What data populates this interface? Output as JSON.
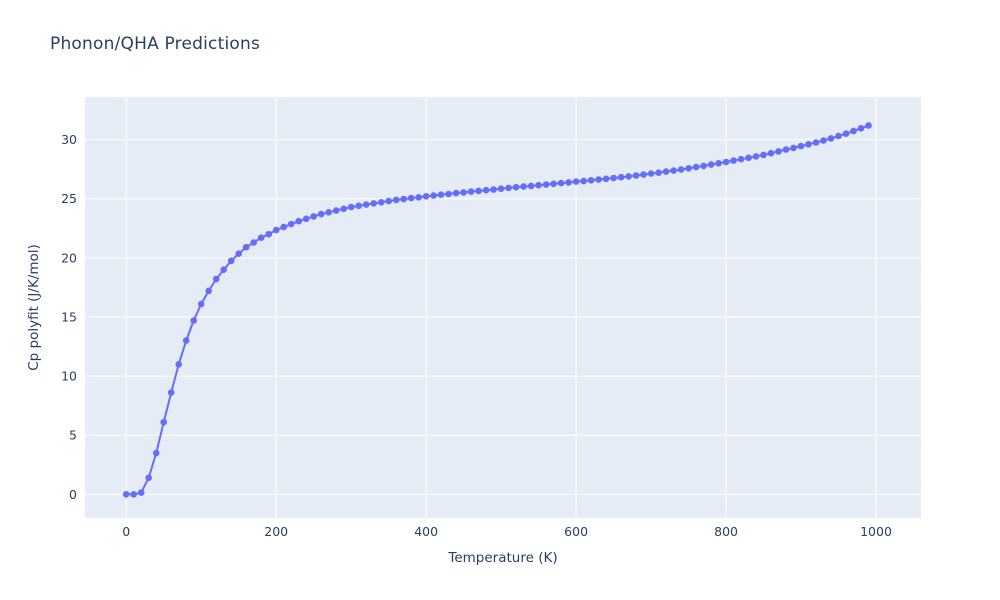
{
  "title": "Phonon/QHA Predictions",
  "chart_data": {
    "type": "line",
    "mode": "lines+markers",
    "title": "Phonon/QHA Predictions",
    "xlabel": "Temperature (K)",
    "ylabel": "Cp polyfit (J/K/mol)",
    "x": [
      0,
      10,
      20,
      30,
      40,
      50,
      60,
      70,
      80,
      90,
      100,
      110,
      120,
      130,
      140,
      150,
      160,
      170,
      180,
      190,
      200,
      210,
      220,
      230,
      240,
      250,
      260,
      270,
      280,
      290,
      300,
      310,
      320,
      330,
      340,
      350,
      360,
      370,
      380,
      390,
      400,
      410,
      420,
      430,
      440,
      450,
      460,
      470,
      480,
      490,
      500,
      510,
      520,
      530,
      540,
      550,
      560,
      570,
      580,
      590,
      600,
      610,
      620,
      630,
      640,
      650,
      660,
      670,
      680,
      690,
      700,
      710,
      720,
      730,
      740,
      750,
      760,
      770,
      780,
      790,
      800,
      810,
      820,
      830,
      840,
      850,
      860,
      870,
      880,
      890,
      900,
      910,
      920,
      930,
      940,
      950,
      960,
      970,
      980,
      990
    ],
    "y": [
      0.0,
      0.0,
      0.15,
      1.4,
      3.5,
      6.1,
      8.6,
      11.0,
      13.0,
      14.7,
      16.1,
      17.2,
      18.2,
      19.0,
      19.75,
      20.35,
      20.9,
      21.3,
      21.7,
      22.0,
      22.35,
      22.6,
      22.85,
      23.1,
      23.3,
      23.5,
      23.7,
      23.85,
      24.0,
      24.15,
      24.3,
      24.4,
      24.5,
      24.6,
      24.7,
      24.8,
      24.9,
      24.97,
      25.05,
      25.12,
      25.2,
      25.27,
      25.34,
      25.4,
      25.47,
      25.53,
      25.6,
      25.66,
      25.72,
      25.78,
      25.85,
      25.91,
      25.97,
      26.03,
      26.08,
      26.14,
      26.2,
      26.26,
      26.32,
      26.38,
      26.45,
      26.5,
      26.56,
      26.62,
      26.68,
      26.75,
      26.82,
      26.89,
      26.96,
      27.04,
      27.12,
      27.2,
      27.29,
      27.38,
      27.47,
      27.57,
      27.67,
      27.77,
      27.88,
      27.99,
      28.1,
      28.22,
      28.34,
      28.46,
      28.58,
      28.7,
      28.85,
      29.0,
      29.15,
      29.3,
      29.45,
      29.6,
      29.75,
      29.92,
      30.1,
      30.3,
      30.5,
      30.72,
      30.95,
      31.18
    ],
    "xlim": [
      -55,
      1060
    ],
    "ylim": [
      -2,
      33.6
    ],
    "xticks": [
      0,
      200,
      400,
      600,
      800,
      1000
    ],
    "yticks": [
      0,
      5,
      10,
      15,
      20,
      25,
      30
    ],
    "grid": true,
    "legend": "none",
    "colors": {
      "series": "#636efa",
      "plot_background": "#e5ecf6",
      "grid": "#ffffff",
      "text": "#2a3f5f"
    }
  }
}
